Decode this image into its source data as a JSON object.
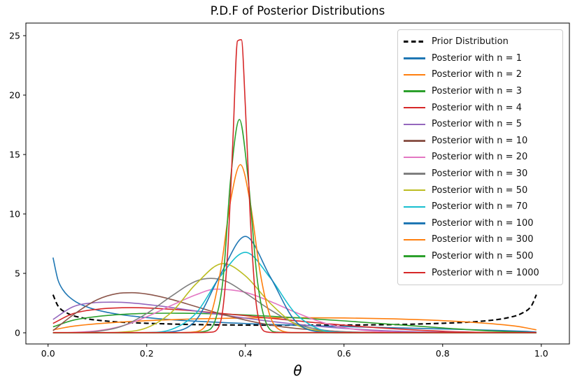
{
  "figure": {
    "title": "P.D.F of Posterior Distributions",
    "xlabel": "θ"
  },
  "chart_data": {
    "type": "line",
    "title": "P.D.F of Posterior Distributions",
    "xlabel": "θ",
    "ylabel": "",
    "grid": false,
    "legend_position": "upper right",
    "xlim": [
      -0.045,
      1.057
    ],
    "ylim": [
      -0.94,
      26.06
    ],
    "xticks": {
      "values": [
        0.0,
        0.2,
        0.4,
        0.6,
        0.8,
        1.0
      ],
      "labels": [
        "0.0",
        "0.2",
        "0.4",
        "0.6",
        "0.8",
        "1.0"
      ]
    },
    "yticks": {
      "values": [
        0,
        5,
        10,
        15,
        20,
        25
      ],
      "labels": [
        "0",
        "5",
        "10",
        "15",
        "20",
        "25"
      ]
    },
    "series": [
      {
        "label": "Prior Distribution",
        "color": "#000000",
        "dash": true,
        "linewidth": 2.1,
        "points": [
          [
            0.01,
            3.2
          ],
          [
            0.02,
            2.27
          ],
          [
            0.04,
            1.63
          ],
          [
            0.07,
            1.25
          ],
          [
            0.1,
            1.06
          ],
          [
            0.15,
            0.89
          ],
          [
            0.2,
            0.8
          ],
          [
            0.3,
            0.69
          ],
          [
            0.4,
            0.65
          ],
          [
            0.5,
            0.64
          ],
          [
            0.6,
            0.65
          ],
          [
            0.7,
            0.69
          ],
          [
            0.8,
            0.8
          ],
          [
            0.85,
            0.89
          ],
          [
            0.9,
            1.06
          ],
          [
            0.93,
            1.25
          ],
          [
            0.96,
            1.63
          ],
          [
            0.98,
            2.27
          ],
          [
            0.99,
            3.2
          ]
        ]
      },
      {
        "label": "Posterior with n = 1",
        "color": "#1f77b4",
        "dash": false,
        "linewidth": 1.6,
        "points": [
          [
            0.01,
            6.33
          ],
          [
            0.02,
            4.46
          ],
          [
            0.03,
            3.62
          ],
          [
            0.05,
            2.78
          ],
          [
            0.08,
            2.16
          ],
          [
            0.12,
            1.72
          ],
          [
            0.17,
            1.41
          ],
          [
            0.25,
            1.1
          ],
          [
            0.35,
            0.87
          ],
          [
            0.45,
            0.7
          ],
          [
            0.55,
            0.58
          ],
          [
            0.65,
            0.47
          ],
          [
            0.75,
            0.37
          ],
          [
            0.85,
            0.27
          ],
          [
            0.92,
            0.19
          ],
          [
            0.97,
            0.11
          ],
          [
            0.99,
            0.06
          ]
        ]
      },
      {
        "label": "Posterior with n = 2",
        "color": "#ff7f0e",
        "dash": false,
        "linewidth": 1.6,
        "points": [
          [
            0.01,
            0.25
          ],
          [
            0.05,
            0.55
          ],
          [
            0.1,
            0.76
          ],
          [
            0.2,
            1.02
          ],
          [
            0.3,
            1.17
          ],
          [
            0.4,
            1.25
          ],
          [
            0.5,
            1.27
          ],
          [
            0.6,
            1.25
          ],
          [
            0.7,
            1.17
          ],
          [
            0.8,
            1.02
          ],
          [
            0.9,
            0.76
          ],
          [
            0.95,
            0.55
          ],
          [
            0.99,
            0.25
          ]
        ]
      },
      {
        "label": "Posterior with n = 3",
        "color": "#2ca02c",
        "dash": false,
        "linewidth": 1.6,
        "points": [
          [
            0.01,
            0.5
          ],
          [
            0.05,
            1.05
          ],
          [
            0.1,
            1.37
          ],
          [
            0.15,
            1.55
          ],
          [
            0.2,
            1.63
          ],
          [
            0.25,
            1.65
          ],
          [
            0.3,
            1.63
          ],
          [
            0.4,
            1.5
          ],
          [
            0.5,
            1.27
          ],
          [
            0.6,
            1.0
          ],
          [
            0.7,
            0.7
          ],
          [
            0.8,
            0.41
          ],
          [
            0.9,
            0.15
          ],
          [
            0.99,
            0.01
          ]
        ]
      },
      {
        "label": "Posterior with n = 4",
        "color": "#d62728",
        "dash": false,
        "linewidth": 1.6,
        "points": [
          [
            0.01,
            0.79
          ],
          [
            0.05,
            1.6
          ],
          [
            0.1,
            1.98
          ],
          [
            0.17,
            2.11
          ],
          [
            0.25,
            1.98
          ],
          [
            0.3,
            1.83
          ],
          [
            0.4,
            1.44
          ],
          [
            0.5,
            1.02
          ],
          [
            0.6,
            0.64
          ],
          [
            0.7,
            0.34
          ],
          [
            0.8,
            0.13
          ],
          [
            0.9,
            0.02
          ],
          [
            0.99,
            0.0
          ]
        ]
      },
      {
        "label": "Posterior with n = 5",
        "color": "#9467bd",
        "dash": false,
        "linewidth": 1.6,
        "points": [
          [
            0.01,
            1.12
          ],
          [
            0.05,
            2.18
          ],
          [
            0.09,
            2.52
          ],
          [
            0.13,
            2.58
          ],
          [
            0.17,
            2.51
          ],
          [
            0.22,
            2.29
          ],
          [
            0.3,
            1.83
          ],
          [
            0.4,
            1.23
          ],
          [
            0.5,
            0.73
          ],
          [
            0.6,
            0.37
          ],
          [
            0.7,
            0.14
          ],
          [
            0.8,
            0.04
          ],
          [
            0.9,
            0.01
          ],
          [
            0.99,
            0.0
          ]
        ]
      },
      {
        "label": "Posterior with n = 10",
        "color": "#8c564b",
        "dash": false,
        "linewidth": 1.6,
        "points": [
          [
            0.01,
            0.18
          ],
          [
            0.05,
            1.48
          ],
          [
            0.1,
            2.79
          ],
          [
            0.14,
            3.3
          ],
          [
            0.17,
            3.37
          ],
          [
            0.2,
            3.26
          ],
          [
            0.25,
            2.81
          ],
          [
            0.3,
            2.2
          ],
          [
            0.35,
            1.59
          ],
          [
            0.4,
            1.07
          ],
          [
            0.45,
            0.66
          ],
          [
            0.5,
            0.38
          ],
          [
            0.6,
            0.09
          ],
          [
            0.7,
            0.01
          ],
          [
            0.85,
            0.0
          ],
          [
            0.99,
            0.0
          ]
        ]
      },
      {
        "label": "Posterior with n = 20",
        "color": "#e377c2",
        "dash": false,
        "linewidth": 1.6,
        "points": [
          [
            0.01,
            0.0
          ],
          [
            0.05,
            0.03
          ],
          [
            0.1,
            0.17
          ],
          [
            0.15,
            0.57
          ],
          [
            0.2,
            1.35
          ],
          [
            0.25,
            2.3
          ],
          [
            0.3,
            3.2
          ],
          [
            0.34,
            3.67
          ],
          [
            0.4,
            3.4
          ],
          [
            0.45,
            2.65
          ],
          [
            0.5,
            1.75
          ],
          [
            0.55,
            0.95
          ],
          [
            0.6,
            0.43
          ],
          [
            0.65,
            0.17
          ],
          [
            0.7,
            0.06
          ],
          [
            0.8,
            0.01
          ],
          [
            0.99,
            0.0
          ]
        ]
      },
      {
        "label": "Posterior with n = 30",
        "color": "#7f7f7f",
        "dash": false,
        "linewidth": 1.6,
        "points": [
          [
            0.01,
            0.0
          ],
          [
            0.05,
            0.01
          ],
          [
            0.1,
            0.12
          ],
          [
            0.15,
            0.56
          ],
          [
            0.2,
            1.62
          ],
          [
            0.25,
            3.08
          ],
          [
            0.3,
            4.35
          ],
          [
            0.33,
            4.58
          ],
          [
            0.36,
            4.35
          ],
          [
            0.4,
            3.35
          ],
          [
            0.45,
            1.95
          ],
          [
            0.5,
            0.8
          ],
          [
            0.55,
            0.28
          ],
          [
            0.6,
            0.08
          ],
          [
            0.7,
            0.01
          ],
          [
            0.85,
            0.0
          ],
          [
            0.99,
            0.0
          ]
        ]
      },
      {
        "label": "Posterior with n = 50",
        "color": "#bcbd22",
        "dash": false,
        "linewidth": 1.6,
        "points": [
          [
            0.01,
            0.0
          ],
          [
            0.1,
            0.01
          ],
          [
            0.15,
            0.06
          ],
          [
            0.2,
            0.42
          ],
          [
            0.25,
            1.72
          ],
          [
            0.3,
            4.12
          ],
          [
            0.355,
            5.83
          ],
          [
            0.4,
            4.79
          ],
          [
            0.45,
            2.5
          ],
          [
            0.5,
            0.75
          ],
          [
            0.55,
            0.15
          ],
          [
            0.6,
            0.02
          ],
          [
            0.75,
            0.0
          ],
          [
            0.99,
            0.0
          ]
        ]
      },
      {
        "label": "Posterior with n = 70",
        "color": "#17becf",
        "dash": false,
        "linewidth": 1.6,
        "points": [
          [
            0.01,
            0.0
          ],
          [
            0.15,
            0.0
          ],
          [
            0.2,
            0.02
          ],
          [
            0.25,
            0.28
          ],
          [
            0.3,
            1.65
          ],
          [
            0.35,
            4.79
          ],
          [
            0.4,
            6.77
          ],
          [
            0.45,
            4.65
          ],
          [
            0.5,
            1.7
          ],
          [
            0.55,
            0.3
          ],
          [
            0.6,
            0.03
          ],
          [
            0.75,
            0.0
          ],
          [
            0.99,
            0.0
          ]
        ]
      },
      {
        "label": "Posterior with n = 100",
        "color": "#1f77b4",
        "dash": false,
        "linewidth": 1.6,
        "points": [
          [
            0.01,
            0.0
          ],
          [
            0.2,
            0.0
          ],
          [
            0.25,
            0.08
          ],
          [
            0.3,
            1.07
          ],
          [
            0.35,
            4.94
          ],
          [
            0.4,
            8.11
          ],
          [
            0.45,
            4.74
          ],
          [
            0.5,
            1.05
          ],
          [
            0.55,
            0.08
          ],
          [
            0.6,
            0.0
          ],
          [
            0.8,
            0.0
          ],
          [
            0.99,
            0.0
          ]
        ]
      },
      {
        "label": "Posterior with n = 300",
        "color": "#ff7f0e",
        "dash": false,
        "linewidth": 1.6,
        "points": [
          [
            0.01,
            0.01
          ],
          [
            0.15,
            0.01
          ],
          [
            0.25,
            0.01
          ],
          [
            0.3,
            0.09
          ],
          [
            0.33,
            1.52
          ],
          [
            0.35,
            5.28
          ],
          [
            0.37,
            11.1
          ],
          [
            0.39,
            14.15
          ],
          [
            0.41,
            10.9
          ],
          [
            0.43,
            5.07
          ],
          [
            0.45,
            1.43
          ],
          [
            0.47,
            0.24
          ],
          [
            0.5,
            0.02
          ],
          [
            0.6,
            0.01
          ],
          [
            0.8,
            0.01
          ],
          [
            0.99,
            0.01
          ]
        ]
      },
      {
        "label": "Posterior with n = 500",
        "color": "#2ca02c",
        "dash": false,
        "linewidth": 1.6,
        "points": [
          [
            0.01,
            0.01
          ],
          [
            0.15,
            0.01
          ],
          [
            0.28,
            0.01
          ],
          [
            0.32,
            0.15
          ],
          [
            0.34,
            1.2
          ],
          [
            0.355,
            4.6
          ],
          [
            0.37,
            12.9
          ],
          [
            0.388,
            17.95
          ],
          [
            0.405,
            13.2
          ],
          [
            0.425,
            4.19
          ],
          [
            0.445,
            0.57
          ],
          [
            0.465,
            0.05
          ],
          [
            0.5,
            0.01
          ],
          [
            0.7,
            0.01
          ],
          [
            0.99,
            0.01
          ]
        ]
      },
      {
        "label": "Posterior with n = 1000",
        "color": "#d62728",
        "dash": false,
        "linewidth": 1.6,
        "points": [
          [
            0.01,
            0.02
          ],
          [
            0.15,
            0.02
          ],
          [
            0.3,
            0.02
          ],
          [
            0.33,
            0.05
          ],
          [
            0.345,
            0.42
          ],
          [
            0.355,
            2.19
          ],
          [
            0.365,
            7.4
          ],
          [
            0.375,
            16.4
          ],
          [
            0.384,
            24.55
          ],
          [
            0.392,
            24.66
          ],
          [
            0.4,
            19.0
          ],
          [
            0.41,
            9.66
          ],
          [
            0.42,
            3.21
          ],
          [
            0.43,
            0.7
          ],
          [
            0.445,
            0.06
          ],
          [
            0.46,
            0.02
          ],
          [
            0.6,
            0.02
          ],
          [
            0.8,
            0.02
          ],
          [
            0.99,
            0.02
          ]
        ]
      }
    ]
  }
}
